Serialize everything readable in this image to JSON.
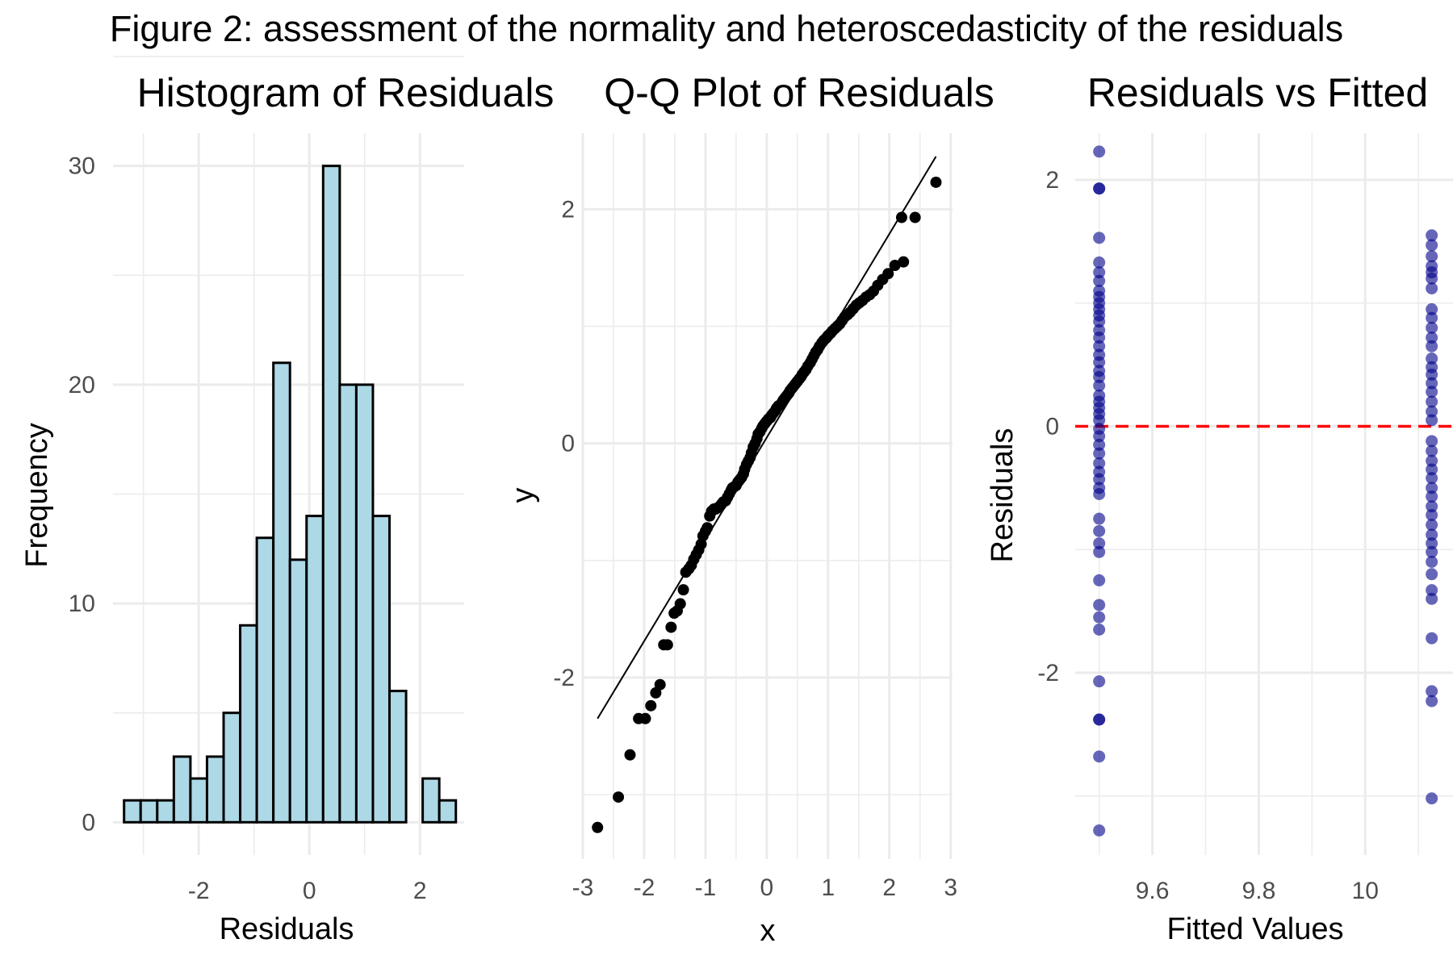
{
  "figure_title": "Figure 2: assessment of the normality and heteroscedasticity of the residuals",
  "chart_data": [
    {
      "type": "bar",
      "title": "Histogram of Residuals",
      "xlabel": "Residuals",
      "ylabel": "Frequency",
      "bin_width": 0.3,
      "bin_centers": [
        -3.2,
        -2.9,
        -2.6,
        -2.3,
        -2.0,
        -1.7,
        -1.4,
        -1.1,
        -0.8,
        -0.5,
        -0.2,
        0.1,
        0.4,
        0.7,
        1.0,
        1.3,
        1.6,
        1.9,
        2.2,
        2.5
      ],
      "values": [
        1,
        1,
        1,
        3,
        2,
        3,
        5,
        9,
        13,
        21,
        12,
        14,
        30,
        20,
        20,
        14,
        6,
        0,
        2,
        1
      ],
      "xlim": [
        -3.55,
        2.8
      ],
      "ylim": [
        -1.5,
        31.5
      ],
      "xticks": [
        -2,
        0,
        2
      ],
      "yticks": [
        0,
        10,
        20,
        30
      ],
      "bar_fill": "#add8e6",
      "bar_stroke": "#000000"
    },
    {
      "type": "scatter",
      "title": "Q-Q Plot of Residuals",
      "xlabel": "x",
      "ylabel": "y",
      "xlim": [
        -3.0,
        3.03
      ],
      "ylim": [
        -3.55,
        2.65
      ],
      "xticks": [
        -3,
        -2,
        -1,
        0,
        1,
        2,
        3
      ],
      "yticks": [
        -2,
        0,
        2
      ],
      "point_color": "#000000",
      "reference_line": {
        "x": [
          -2.76,
          2.76
        ],
        "y": [
          -2.35,
          2.45
        ]
      },
      "points": [
        [
          -2.76,
          -3.28
        ],
        [
          -2.42,
          -3.02
        ],
        [
          -2.23,
          -2.66
        ],
        [
          -2.09,
          -2.35
        ],
        [
          -1.98,
          -2.35
        ],
        [
          -1.89,
          -2.24
        ],
        [
          -1.81,
          -2.13
        ],
        [
          -1.74,
          -2.06
        ],
        [
          -1.68,
          -1.72
        ],
        [
          -1.62,
          -1.72
        ],
        [
          -1.56,
          -1.57
        ],
        [
          -1.51,
          -1.45
        ],
        [
          -1.46,
          -1.43
        ],
        [
          -1.41,
          -1.37
        ],
        [
          -1.36,
          -1.25
        ],
        [
          -1.32,
          -1.1
        ],
        [
          -1.27,
          -1.07
        ],
        [
          -1.23,
          -1.04
        ],
        [
          -1.19,
          -0.99
        ],
        [
          -1.15,
          -0.95
        ],
        [
          -1.11,
          -0.91
        ],
        [
          -1.07,
          -0.86
        ],
        [
          -1.04,
          -0.79
        ],
        [
          -1.0,
          -0.75
        ],
        [
          -0.97,
          -0.72
        ],
        [
          -0.93,
          -0.62
        ],
        [
          -0.9,
          -0.58
        ],
        [
          -0.86,
          -0.56
        ],
        [
          -0.83,
          -0.56
        ],
        [
          -0.8,
          -0.55
        ],
        [
          -0.77,
          -0.54
        ],
        [
          -0.74,
          -0.52
        ],
        [
          -0.71,
          -0.5
        ],
        [
          -0.67,
          -0.49
        ],
        [
          -0.64,
          -0.46
        ],
        [
          -0.61,
          -0.43
        ],
        [
          -0.58,
          -0.4
        ],
        [
          -0.56,
          -0.38
        ],
        [
          -0.53,
          -0.37
        ],
        [
          -0.5,
          -0.36
        ],
        [
          -0.47,
          -0.33
        ],
        [
          -0.44,
          -0.31
        ],
        [
          -0.41,
          -0.29
        ],
        [
          -0.38,
          -0.26
        ],
        [
          -0.36,
          -0.22
        ],
        [
          -0.33,
          -0.18
        ],
        [
          -0.3,
          -0.15
        ],
        [
          -0.27,
          -0.12
        ],
        [
          -0.25,
          -0.08
        ],
        [
          -0.22,
          -0.03
        ],
        [
          -0.19,
          0.0
        ],
        [
          -0.16,
          0.04
        ],
        [
          -0.14,
          0.08
        ],
        [
          -0.11,
          0.1
        ],
        [
          -0.08,
          0.13
        ],
        [
          -0.06,
          0.15
        ],
        [
          -0.03,
          0.17
        ],
        [
          0.0,
          0.19
        ],
        [
          0.03,
          0.21
        ],
        [
          0.06,
          0.22
        ],
        [
          0.08,
          0.24
        ],
        [
          0.11,
          0.26
        ],
        [
          0.14,
          0.28
        ],
        [
          0.16,
          0.3
        ],
        [
          0.19,
          0.32
        ],
        [
          0.22,
          0.33
        ],
        [
          0.25,
          0.35
        ],
        [
          0.27,
          0.37
        ],
        [
          0.3,
          0.39
        ],
        [
          0.33,
          0.41
        ],
        [
          0.36,
          0.43
        ],
        [
          0.38,
          0.45
        ],
        [
          0.41,
          0.47
        ],
        [
          0.44,
          0.49
        ],
        [
          0.47,
          0.51
        ],
        [
          0.5,
          0.53
        ],
        [
          0.53,
          0.55
        ],
        [
          0.56,
          0.57
        ],
        [
          0.58,
          0.59
        ],
        [
          0.61,
          0.61
        ],
        [
          0.64,
          0.63
        ],
        [
          0.67,
          0.66
        ],
        [
          0.71,
          0.69
        ],
        [
          0.74,
          0.72
        ],
        [
          0.77,
          0.75
        ],
        [
          0.8,
          0.78
        ],
        [
          0.83,
          0.8
        ],
        [
          0.86,
          0.83
        ],
        [
          0.9,
          0.86
        ],
        [
          0.93,
          0.88
        ],
        [
          0.97,
          0.9
        ],
        [
          1.0,
          0.92
        ],
        [
          1.04,
          0.94
        ],
        [
          1.07,
          0.96
        ],
        [
          1.11,
          0.98
        ],
        [
          1.15,
          1.0
        ],
        [
          1.19,
          1.02
        ],
        [
          1.23,
          1.05
        ],
        [
          1.27,
          1.08
        ],
        [
          1.32,
          1.1
        ],
        [
          1.36,
          1.12
        ],
        [
          1.41,
          1.15
        ],
        [
          1.46,
          1.18
        ],
        [
          1.51,
          1.2
        ],
        [
          1.56,
          1.22
        ],
        [
          1.62,
          1.25
        ],
        [
          1.68,
          1.27
        ],
        [
          1.74,
          1.3
        ],
        [
          1.81,
          1.35
        ],
        [
          1.89,
          1.4
        ],
        [
          1.98,
          1.45
        ],
        [
          2.09,
          1.52
        ],
        [
          2.23,
          1.55
        ],
        [
          2.2,
          1.93
        ],
        [
          2.42,
          1.93
        ],
        [
          2.76,
          2.23
        ]
      ]
    },
    {
      "type": "scatter",
      "title": "Residuals vs Fitted",
      "xlabel": "Fitted Values",
      "ylabel": "Residuals",
      "xlim": [
        9.455,
        10.165
      ],
      "ylim": [
        -3.48,
        2.38
      ],
      "xticks": [
        9.6,
        9.8,
        10.0
      ],
      "yticks": [
        -2,
        0,
        2
      ],
      "point_color": "#00008b",
      "point_opacity": 0.6,
      "zero_line_color": "#ff0000",
      "fitted_values": [
        9.5,
        10.125
      ],
      "residuals": [
        [
          2.23,
          1.93,
          1.93,
          1.53,
          1.33,
          1.25,
          1.18,
          1.1,
          1.05,
          1.0,
          0.95,
          0.9,
          0.85,
          0.78,
          0.72,
          0.65,
          0.58,
          0.52,
          0.45,
          0.4,
          0.33,
          0.25,
          0.2,
          0.15,
          0.1,
          0.05,
          -0.02,
          -0.08,
          -0.15,
          -0.22,
          -0.3,
          -0.37,
          -0.43,
          -0.5,
          -0.55,
          -0.75,
          -0.85,
          -0.95,
          -1.02,
          -1.25,
          -1.45,
          -1.55,
          -1.65,
          -2.07,
          -2.38,
          -2.38,
          -2.68,
          -3.28
        ],
        [
          1.55,
          1.47,
          1.38,
          1.3,
          1.25,
          1.2,
          1.12,
          0.95,
          0.88,
          0.8,
          0.72,
          0.65,
          0.55,
          0.48,
          0.42,
          0.35,
          0.28,
          0.2,
          0.12,
          0.05,
          -0.12,
          -0.2,
          -0.28,
          -0.35,
          -0.42,
          -0.5,
          -0.57,
          -0.65,
          -0.72,
          -0.8,
          -0.88,
          -0.95,
          -1.02,
          -1.1,
          -1.2,
          -1.33,
          -1.4,
          -1.72,
          -2.15,
          -2.23,
          -3.02
        ]
      ]
    }
  ]
}
